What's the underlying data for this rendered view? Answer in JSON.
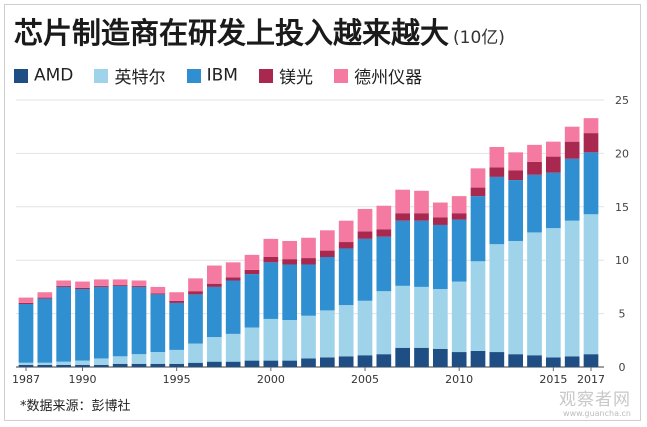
{
  "title": "芯片制造商在研发上投入越来越大",
  "unit": "(10亿)",
  "source": "*数据来源：彭博社",
  "watermark": {
    "main": "观察者网",
    "sub": "www.guancha.cn"
  },
  "colors": {
    "AMD": "#1f4e85",
    "Intel": "#9fd3ea",
    "IBM": "#2f8fd1",
    "Nikon": "#a8284f",
    "TI": "#f47aa2"
  },
  "chart_data": {
    "type": "bar",
    "stacked": true,
    "title": "芯片制造商在研发上投入越来越大",
    "ylabel": "(10亿)",
    "xlabel": "",
    "ylim": [
      0,
      25
    ],
    "yticks": [
      0,
      5,
      10,
      15,
      20,
      25
    ],
    "x": [
      1987,
      1988,
      1989,
      1990,
      1991,
      1992,
      1993,
      1994,
      1995,
      1996,
      1997,
      1998,
      1999,
      2000,
      2001,
      2002,
      2003,
      2004,
      2005,
      2006,
      2007,
      2008,
      2009,
      2010,
      2011,
      2012,
      2013,
      2014,
      2015,
      2016,
      2017
    ],
    "xtick_labels": [
      "1987",
      "1990",
      "1995",
      "2000",
      "2005",
      "2010",
      "2015",
      "2017"
    ],
    "legend_position": "top",
    "series": [
      {
        "name": "AMD",
        "key": "AMD",
        "values": [
          0.2,
          0.2,
          0.2,
          0.2,
          0.2,
          0.3,
          0.3,
          0.3,
          0.3,
          0.4,
          0.5,
          0.5,
          0.6,
          0.6,
          0.6,
          0.8,
          0.9,
          1.0,
          1.1,
          1.2,
          1.8,
          1.8,
          1.7,
          1.4,
          1.5,
          1.4,
          1.2,
          1.1,
          0.9,
          1.0,
          1.2
        ]
      },
      {
        "name": "英特尔",
        "key": "Intel",
        "values": [
          0.2,
          0.2,
          0.3,
          0.4,
          0.6,
          0.7,
          0.9,
          1.1,
          1.3,
          1.8,
          2.3,
          2.6,
          3.1,
          3.9,
          3.8,
          4.0,
          4.4,
          4.8,
          5.1,
          5.9,
          5.8,
          5.7,
          5.6,
          6.6,
          8.4,
          10.1,
          10.6,
          11.5,
          12.1,
          12.7,
          13.1
        ]
      },
      {
        "name": "IBM",
        "key": "IBM",
        "values": [
          5.5,
          6.0,
          7.0,
          6.7,
          6.7,
          6.6,
          6.3,
          5.4,
          4.4,
          4.6,
          4.7,
          5.0,
          5.0,
          5.3,
          5.2,
          4.8,
          5.0,
          5.3,
          5.8,
          5.1,
          6.1,
          6.2,
          6.0,
          5.8,
          6.1,
          6.3,
          5.7,
          5.4,
          5.2,
          5.8,
          5.8
        ]
      },
      {
        "name": "镁光",
        "key": "Nikon",
        "values": [
          0.1,
          0.1,
          0.1,
          0.1,
          0.1,
          0.1,
          0.1,
          0.1,
          0.2,
          0.3,
          0.3,
          0.3,
          0.4,
          0.5,
          0.5,
          0.6,
          0.6,
          0.6,
          0.7,
          0.7,
          0.7,
          0.7,
          0.7,
          0.6,
          0.8,
          0.9,
          0.9,
          1.2,
          1.5,
          1.6,
          1.8
        ]
      },
      {
        "name": "德州仪器",
        "key": "TI",
        "values": [
          0.5,
          0.5,
          0.5,
          0.6,
          0.6,
          0.5,
          0.5,
          0.6,
          0.8,
          1.2,
          1.7,
          1.4,
          1.4,
          1.7,
          1.7,
          1.9,
          1.9,
          2.0,
          2.1,
          2.2,
          2.2,
          2.1,
          1.4,
          1.6,
          1.8,
          1.9,
          1.7,
          1.6,
          1.4,
          1.4,
          1.4
        ]
      }
    ]
  }
}
